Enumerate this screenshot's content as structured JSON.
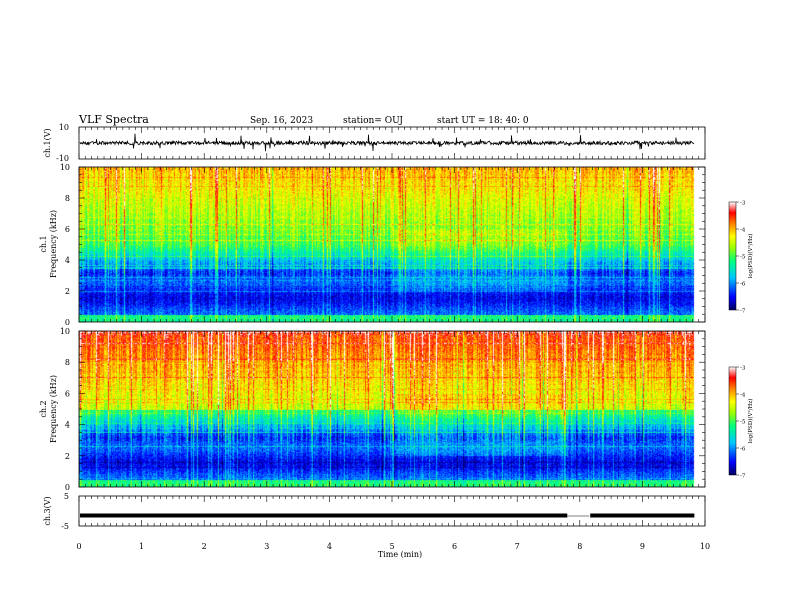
{
  "header": {
    "title": "VLF Spectra",
    "date": "Sep. 16, 2023",
    "station": "station= OUJ",
    "start": "start  UT  =   18: 40: 0"
  },
  "chart_data": {
    "type": "heatmap",
    "x": {
      "label": "Time  (min)",
      "range": [
        0,
        10
      ],
      "ticks": [
        "0",
        "1",
        "2",
        "3",
        "4",
        "5",
        "6",
        "7",
        "8",
        "9",
        "10"
      ]
    },
    "panels": [
      {
        "id": "ch1-waveform",
        "type": "line",
        "ylabel": "ch.1(V)",
        "yrange": [
          -10,
          10
        ],
        "yticks": [
          "10",
          "-10"
        ],
        "baseline": 0,
        "data_end_min": 9.83
      },
      {
        "id": "ch1-spectrogram",
        "type": "heatmap",
        "ylabel_channel": "ch.1",
        "ylabel": "Frequency  (kHz)",
        "yrange": [
          0,
          10
        ],
        "yticks": [
          "0",
          "2",
          "4",
          "6",
          "8",
          "10"
        ],
        "data_end_min": 9.83,
        "colorbar": {
          "label": "log(PSD)(V²/Hz)",
          "range": [
            -7,
            -3
          ],
          "ticks": [
            "-3",
            "-4",
            "-5",
            "-6",
            "-7"
          ]
        }
      },
      {
        "id": "ch2-spectrogram",
        "type": "heatmap",
        "ylabel_channel": "ch.2",
        "ylabel": "Frequency  (kHz)",
        "yrange": [
          0,
          10
        ],
        "yticks": [
          "0",
          "2",
          "4",
          "6",
          "8",
          "10"
        ],
        "data_end_min": 9.83,
        "colorbar": {
          "label": "log(PSD)(V²/Hz)",
          "range": [
            -7,
            -3
          ],
          "ticks": [
            "-3",
            "-4",
            "-5",
            "-6",
            "-7"
          ]
        }
      },
      {
        "id": "ch3-waveform",
        "type": "line",
        "ylabel": "ch.3(V)",
        "yrange": [
          -5,
          5
        ],
        "yticks": [
          "5",
          "-5"
        ],
        "level": -1.5,
        "gap_min": [
          7.8,
          8.15
        ],
        "data_end_min": 9.83
      }
    ]
  },
  "colors": {
    "background": "#ffffff",
    "axes": "#000000",
    "colormap": [
      "#000080",
      "#0000ff",
      "#00c0ff",
      "#00ff80",
      "#80ff00",
      "#ffff00",
      "#ff8000",
      "#ff0000",
      "#ffffff"
    ]
  }
}
